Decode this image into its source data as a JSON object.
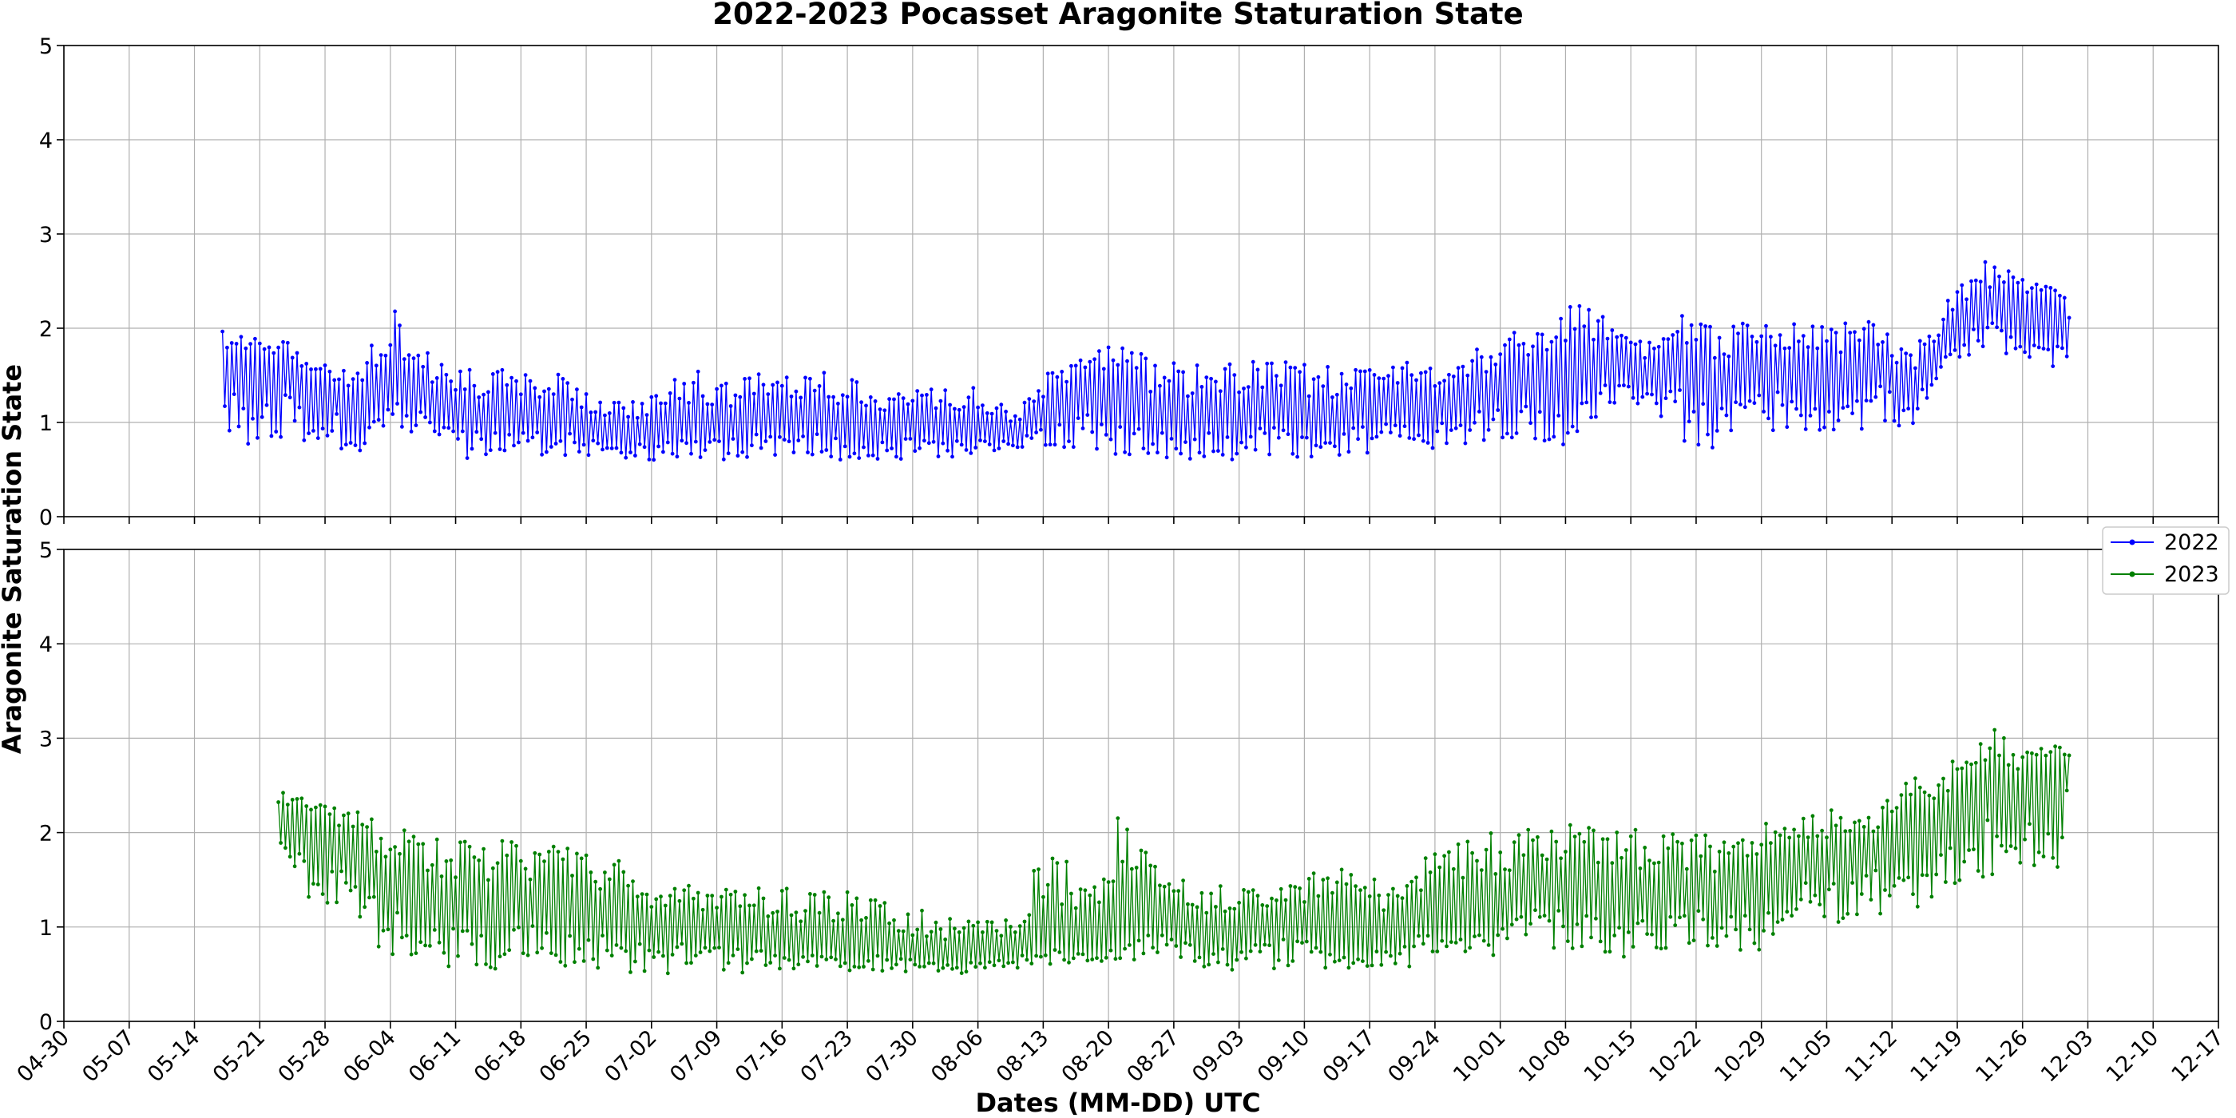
{
  "chart_data": {
    "type": "line",
    "title": "2022-2023 Pocasset Aragonite Staturation State",
    "xlabel": "Dates (MM-DD) UTC",
    "ylabel": "Aragonite Saturation State",
    "ylim": [
      0,
      5
    ],
    "yticks": [
      "0",
      "1",
      "2",
      "3",
      "4",
      "5"
    ],
    "xticks": [
      "04-30",
      "05-07",
      "05-14",
      "05-21",
      "05-28",
      "06-04",
      "06-11",
      "06-18",
      "06-25",
      "07-02",
      "07-09",
      "07-16",
      "07-23",
      "07-30",
      "08-06",
      "08-13",
      "08-20",
      "08-27",
      "09-03",
      "09-10",
      "09-17",
      "09-24",
      "10-01",
      "10-08",
      "10-15",
      "10-22",
      "10-29",
      "11-05",
      "11-12",
      "11-19",
      "11-26",
      "12-03",
      "12-10",
      "12-17"
    ],
    "grid": true,
    "legend_position": "right, between panels",
    "panels": [
      {
        "series": {
          "name": "2022",
          "color": "#0000ff",
          "start": "05-17",
          "end": "12-01",
          "x": [
            "05-17",
            "05-20",
            "05-24",
            "05-28",
            "06-01",
            "06-04",
            "06-07",
            "06-11",
            "06-15",
            "06-19",
            "06-23",
            "06-27",
            "07-01",
            "07-05",
            "07-09",
            "07-13",
            "07-17",
            "07-21",
            "07-25",
            "07-29",
            "08-02",
            "08-06",
            "08-10",
            "08-14",
            "08-18",
            "08-22",
            "08-26",
            "08-30",
            "09-03",
            "09-07",
            "09-11",
            "09-15",
            "09-19",
            "09-23",
            "09-27",
            "10-01",
            "10-05",
            "10-09",
            "10-13",
            "10-17",
            "10-21",
            "10-25",
            "10-29",
            "11-02",
            "11-06",
            "11-10",
            "11-14",
            "11-18",
            "11-22",
            "11-26",
            "11-30",
            "12-01"
          ],
          "mid": [
            1.55,
            1.6,
            1.55,
            1.4,
            1.2,
            1.45,
            1.3,
            1.1,
            1.05,
            1.1,
            1.05,
            0.9,
            0.9,
            0.95,
            0.95,
            1.05,
            1.05,
            1.0,
            1.0,
            0.95,
            1.0,
            0.95,
            0.9,
            1.2,
            1.3,
            1.15,
            1.05,
            1.05,
            1.1,
            1.15,
            1.05,
            1.1,
            1.3,
            1.1,
            1.25,
            1.35,
            1.55,
            1.6,
            1.55,
            1.55,
            1.65,
            1.4,
            1.6,
            1.55,
            1.45,
            1.7,
            1.35,
            1.9,
            2.25,
            2.2,
            2.1,
            2.0
          ],
          "high": [
            2.1,
            1.95,
            1.85,
            1.65,
            1.55,
            2.35,
            1.8,
            1.6,
            1.55,
            1.6,
            1.5,
            1.2,
            1.25,
            1.65,
            1.45,
            1.55,
            1.5,
            1.55,
            1.4,
            1.35,
            1.4,
            1.4,
            1.1,
            1.65,
            1.85,
            1.8,
            1.7,
            1.65,
            1.65,
            1.65,
            1.65,
            1.55,
            1.75,
            1.55,
            1.85,
            1.9,
            2.05,
            2.3,
            2.1,
            1.9,
            2.2,
            2.0,
            2.1,
            2.05,
            2.05,
            2.1,
            1.75,
            2.3,
            2.8,
            2.55,
            2.5,
            2.25
          ],
          "low": [
            0.9,
            0.75,
            0.85,
            0.65,
            0.65,
            1.05,
            0.8,
            0.6,
            0.6,
            0.6,
            0.6,
            0.6,
            0.6,
            0.6,
            0.6,
            0.6,
            0.65,
            0.6,
            0.6,
            0.6,
            0.6,
            0.65,
            0.7,
            0.75,
            0.7,
            0.65,
            0.6,
            0.6,
            0.6,
            0.6,
            0.6,
            0.65,
            0.7,
            0.7,
            0.75,
            0.85,
            0.7,
            0.7,
            1.2,
            1.2,
            0.75,
            0.7,
            0.9,
            0.9,
            0.75,
            1.0,
            0.9,
            1.6,
            1.8,
            1.6,
            1.55,
            1.6
          ]
        }
      },
      {
        "series": {
          "name": "2023",
          "color": "#008000",
          "start": "05-23",
          "end": "12-01",
          "x": [
            "05-23",
            "05-26",
            "05-30",
            "06-03",
            "06-07",
            "06-11",
            "06-15",
            "06-19",
            "06-23",
            "06-27",
            "07-01",
            "07-05",
            "07-09",
            "07-13",
            "07-17",
            "07-21",
            "07-25",
            "07-29",
            "08-02",
            "08-06",
            "08-10",
            "08-14",
            "08-18",
            "08-22",
            "08-26",
            "08-30",
            "09-03",
            "09-07",
            "09-11",
            "09-15",
            "09-19",
            "09-23",
            "09-27",
            "10-01",
            "10-05",
            "10-09",
            "10-13",
            "10-17",
            "10-21",
            "10-25",
            "10-29",
            "11-02",
            "11-06",
            "11-10",
            "11-14",
            "11-18",
            "11-22",
            "11-26",
            "11-30",
            "12-01"
          ],
          "mid": [
            2.2,
            2.0,
            1.85,
            1.55,
            1.35,
            1.3,
            1.25,
            1.25,
            1.25,
            1.1,
            1.05,
            1.0,
            0.95,
            0.9,
            0.85,
            0.8,
            0.85,
            0.75,
            0.7,
            0.7,
            0.75,
            0.9,
            0.75,
            0.95,
            1.25,
            0.85,
            0.95,
            1.05,
            1.05,
            1.0,
            0.95,
            1.15,
            1.2,
            1.3,
            1.45,
            1.5,
            1.4,
            1.35,
            1.4,
            1.35,
            1.45,
            1.6,
            1.85,
            1.9,
            1.95,
            2.3,
            2.55,
            2.5,
            2.65,
            2.7
          ],
          "high": [
            2.45,
            2.35,
            2.3,
            2.1,
            2.0,
            1.9,
            1.95,
            1.9,
            1.85,
            1.8,
            1.55,
            1.5,
            1.45,
            1.45,
            1.4,
            1.45,
            1.5,
            1.2,
            1.15,
            1.1,
            1.25,
            2.0,
            1.45,
            2.42,
            1.6,
            1.45,
            1.5,
            1.55,
            1.65,
            1.6,
            1.55,
            1.75,
            1.9,
            2.05,
            2.05,
            2.15,
            2.1,
            2.0,
            2.0,
            1.95,
            2.1,
            2.2,
            2.25,
            2.2,
            2.6,
            2.7,
            3.15,
            2.95,
            2.95,
            2.9
          ],
          "low": [
            1.9,
            1.3,
            1.1,
            0.75,
            0.6,
            0.55,
            0.55,
            0.6,
            0.55,
            0.55,
            0.5,
            0.5,
            0.5,
            0.5,
            0.5,
            0.5,
            0.5,
            0.5,
            0.5,
            0.5,
            0.55,
            0.6,
            0.6,
            0.65,
            0.6,
            0.55,
            0.5,
            0.55,
            0.55,
            0.55,
            0.55,
            0.6,
            0.65,
            0.6,
            0.8,
            0.75,
            0.65,
            0.75,
            0.8,
            0.75,
            0.6,
            1.2,
            1.0,
            1.05,
            1.15,
            1.45,
            1.45,
            1.4,
            1.6,
            2.2
          ]
        }
      }
    ]
  }
}
